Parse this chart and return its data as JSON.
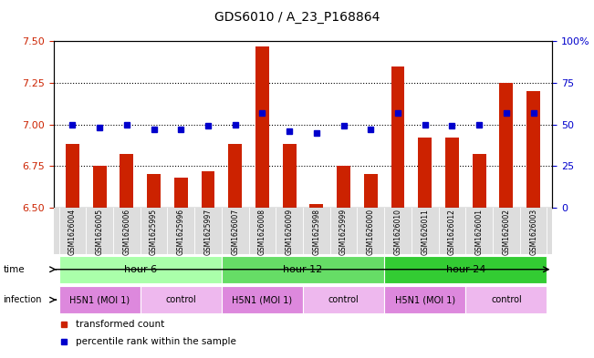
{
  "title": "GDS6010 / A_23_P168864",
  "samples": [
    "GSM1626004",
    "GSM1626005",
    "GSM1626006",
    "GSM1625995",
    "GSM1625996",
    "GSM1625997",
    "GSM1626007",
    "GSM1626008",
    "GSM1626009",
    "GSM1625998",
    "GSM1625999",
    "GSM1626000",
    "GSM1626010",
    "GSM1626011",
    "GSM1626012",
    "GSM1626001",
    "GSM1626002",
    "GSM1626003"
  ],
  "bar_values": [
    6.88,
    6.75,
    6.82,
    6.7,
    6.68,
    6.72,
    6.88,
    7.47,
    6.88,
    6.52,
    6.75,
    6.7,
    7.35,
    6.92,
    6.92,
    6.82,
    7.25,
    7.2
  ],
  "percentile_values": [
    50,
    48,
    50,
    47,
    47,
    49,
    50,
    57,
    46,
    45,
    49,
    47,
    57,
    50,
    49,
    50,
    57,
    57
  ],
  "ylim_left": [
    6.5,
    7.5
  ],
  "ylim_right": [
    0,
    100
  ],
  "yticks_left": [
    6.5,
    6.75,
    7.0,
    7.25,
    7.5
  ],
  "yticks_right": [
    0,
    25,
    50,
    75,
    100
  ],
  "ytick_labels_right": [
    "0",
    "25",
    "50",
    "75",
    "100%"
  ],
  "hlines": [
    6.75,
    7.0,
    7.25
  ],
  "bar_color": "#CC2200",
  "dot_color": "#0000CC",
  "time_groups": [
    {
      "label": "hour 6",
      "start": 0,
      "end": 6,
      "color": "#AAFFAA"
    },
    {
      "label": "hour 12",
      "start": 6,
      "end": 12,
      "color": "#66DD66"
    },
    {
      "label": "hour 24",
      "start": 12,
      "end": 18,
      "color": "#33CC33"
    }
  ],
  "infection_groups": [
    {
      "label": "H5N1 (MOI 1)",
      "start": 0,
      "end": 3,
      "color": "#DD88DD"
    },
    {
      "label": "control",
      "start": 3,
      "end": 6,
      "color": "#EEB8EE"
    },
    {
      "label": "H5N1 (MOI 1)",
      "start": 6,
      "end": 9,
      "color": "#DD88DD"
    },
    {
      "label": "control",
      "start": 9,
      "end": 12,
      "color": "#EEB8EE"
    },
    {
      "label": "H5N1 (MOI 1)",
      "start": 12,
      "end": 15,
      "color": "#DD88DD"
    },
    {
      "label": "control",
      "start": 15,
      "end": 18,
      "color": "#EEB8EE"
    }
  ],
  "legend": [
    {
      "label": "transformed count",
      "color": "#CC2200",
      "marker": "s"
    },
    {
      "label": "percentile rank within the sample",
      "color": "#0000CC",
      "marker": "s"
    }
  ],
  "bg_color": "#FFFFFF",
  "axis_color_left": "#CC2200",
  "axis_color_right": "#0000CC",
  "bar_width": 0.5
}
